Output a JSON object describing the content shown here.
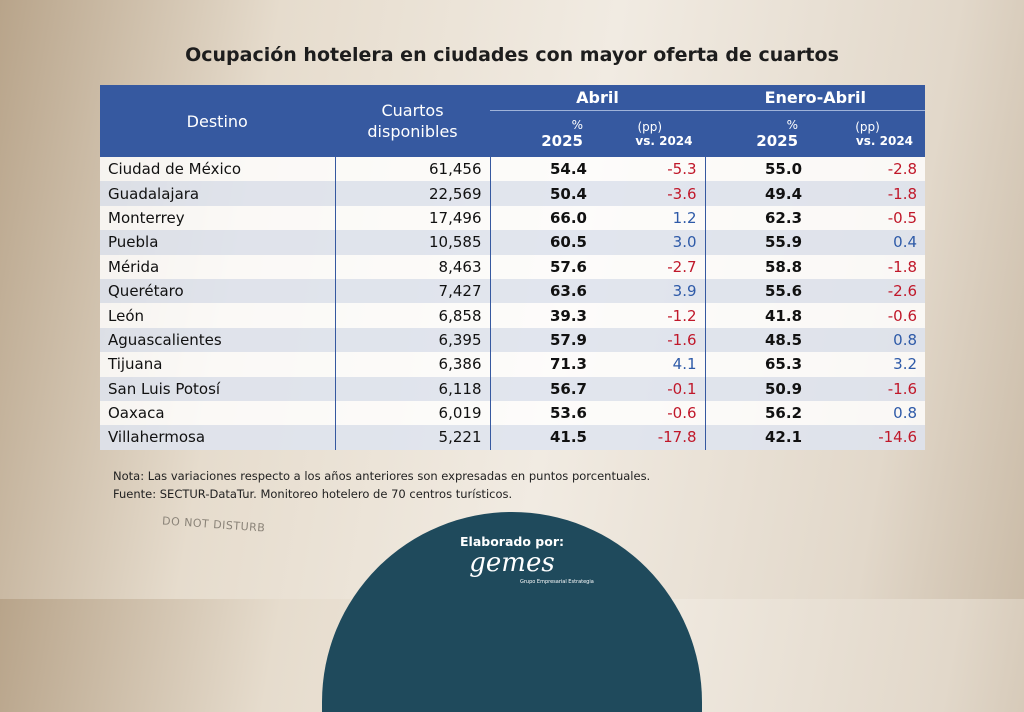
{
  "title": "Ocupación hotelera en ciudades con mayor oferta de cuartos",
  "table": {
    "header": {
      "destino": "Destino",
      "cuartos": "Cuartos disponibles",
      "groups": [
        "Abril",
        "Enero-Abril"
      ],
      "sub": [
        {
          "top": "%",
          "bottom": "2025"
        },
        {
          "top": "(pp)",
          "bottom": "vs. 2024"
        }
      ]
    },
    "rows": [
      [
        "Ciudad de México",
        "61,456",
        "54.4",
        "-5.3",
        "55.0",
        "-2.8"
      ],
      [
        "Guadalajara",
        "22,569",
        "50.4",
        "-3.6",
        "49.4",
        "-1.8"
      ],
      [
        "Monterrey",
        "17,496",
        "66.0",
        "1.2",
        "62.3",
        "-0.5"
      ],
      [
        "Puebla",
        "10,585",
        "60.5",
        "3.0",
        "55.9",
        "0.4"
      ],
      [
        "Mérida",
        "8,463",
        "57.6",
        "-2.7",
        "58.8",
        "-1.8"
      ],
      [
        "Querétaro",
        "7,427",
        "63.6",
        "3.9",
        "55.6",
        "-2.6"
      ],
      [
        "León",
        "6,858",
        "39.3",
        "-1.2",
        "41.8",
        "-0.6"
      ],
      [
        "Aguascalientes",
        "6,395",
        "57.9",
        "-1.6",
        "48.5",
        "0.8"
      ],
      [
        "Tijuana",
        "6,386",
        "71.3",
        "4.1",
        "65.3",
        "3.2"
      ],
      [
        "San Luis Potosí",
        "6,118",
        "56.7",
        "-0.1",
        "50.9",
        "-1.6"
      ],
      [
        "Oaxaca",
        "6,019",
        "53.6",
        "-0.6",
        "56.2",
        "0.8"
      ],
      [
        "Villahermosa",
        "5,221",
        "41.5",
        "-17.8",
        "42.1",
        "-14.6"
      ]
    ]
  },
  "notes": [
    "Nota: Las variaciones respecto a los años anteriores son expresadas en puntos porcentuales.",
    "Fuente: SECTUR-DataTur. Monitoreo hotelero de 70 centros turísticos."
  ],
  "footer": {
    "label": "Elaborado por:",
    "logo": "gemes",
    "logo_sub": "Grupo Empresarial Estrategia"
  },
  "background": {
    "sign": "DO NOT DISTURB"
  }
}
